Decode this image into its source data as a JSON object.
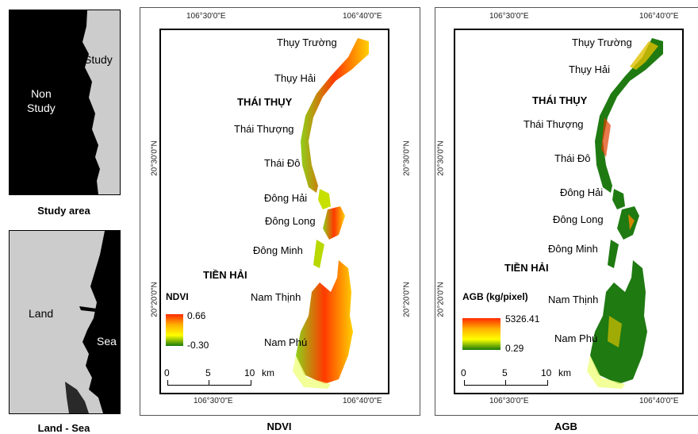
{
  "study_area_panel": {
    "label_study": "Study",
    "label_non_study": "Non\nStudy",
    "caption": "Study area",
    "colors": {
      "study": "#cccccc",
      "non_study": "#000000"
    }
  },
  "land_sea_panel": {
    "label_land": "Land",
    "label_sea": "Sea",
    "caption": "Land - Sea",
    "colors": {
      "land": "#cccccc",
      "sea": "#000000"
    }
  },
  "coords": {
    "lon1": "106°30'0\"E",
    "lon2": "106°40'0\"E",
    "lat1": "20°30'0\"N",
    "lat2": "20°20'0\"N"
  },
  "ndvi_map": {
    "caption": "NDVI",
    "places": {
      "thuy_truong": "Thụy Trường",
      "thuy_hai": "Thụy Hải",
      "thai_thuy": "THÁI THỤY",
      "thai_thuong": "Thái Thượng",
      "thai_do": "Thái Đô",
      "dong_hai": "Đông Hải",
      "dong_long": "Đông Long",
      "dong_minh": "Đông Minh",
      "tien_hai": "TIỀN HẢI",
      "nam_thinh": "Nam Thịnh",
      "nam_phu": "Nam Phú"
    },
    "legend": {
      "title": "NDVI",
      "max": "0.66",
      "min": "-0.30"
    },
    "scale": {
      "t0": "0",
      "t1": "5",
      "t2": "10",
      "unit": "km"
    }
  },
  "agb_map": {
    "caption": "AGB",
    "places": {
      "thuy_truong": "Thụy Trường",
      "thuy_hai": "Thụy Hải",
      "thai_thuy": "THÁI THỤY",
      "thai_thuong": "Thái Thượng",
      "thai_do": "Thái Đô",
      "dong_hai": "Đông Hải",
      "dong_long": "Đông Long",
      "dong_minh": "Đông Minh",
      "tien_hai": "TIỀN HẢI",
      "nam_thinh": "Nam Thịnh",
      "nam_phu": "Nam Phú"
    },
    "legend": {
      "title": "AGB (kg/pixel)",
      "max": "5326.41",
      "min": "0.29"
    },
    "scale": {
      "t0": "0",
      "t1": "5",
      "t2": "10",
      "unit": "km"
    }
  },
  "colors": {
    "ramp_high": "#ff2a00",
    "ramp_mid_high": "#ffb000",
    "ramp_mid": "#ffff00",
    "ramp_low": "#1a7a0a",
    "agb_base": "#1f7a12"
  }
}
